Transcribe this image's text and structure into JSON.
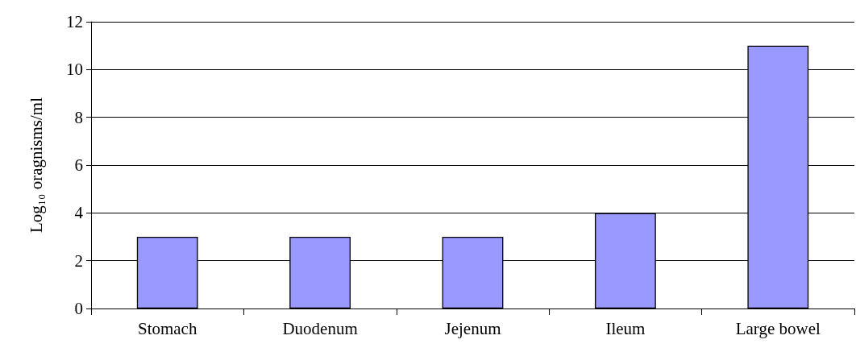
{
  "chart_data": {
    "type": "bar",
    "ylabel": "Log₁₀ oragnisms/ml",
    "categories": [
      "Stomach",
      "Duodenum",
      "Jejenum",
      "Ileum",
      "Large bowel"
    ],
    "values": [
      3,
      3,
      3,
      4,
      11
    ],
    "color": "#9999ff",
    "ylim": [
      0,
      12
    ],
    "yticks": [
      0,
      2,
      4,
      6,
      8,
      10,
      12
    ],
    "grid": "y"
  }
}
